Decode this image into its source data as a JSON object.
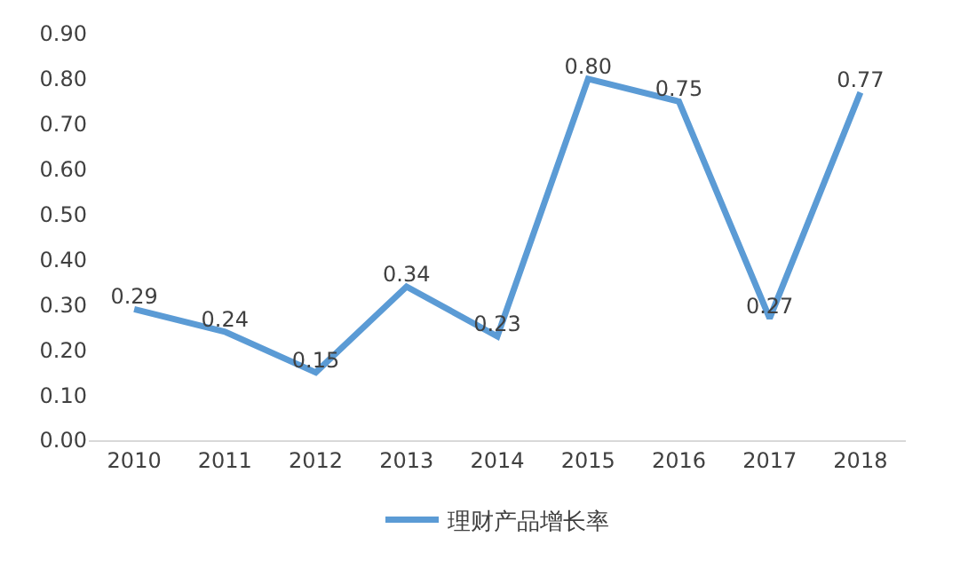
{
  "chart_data": {
    "type": "line",
    "categories": [
      "2010",
      "2011",
      "2012",
      "2013",
      "2014",
      "2015",
      "2016",
      "2017",
      "2018"
    ],
    "series": [
      {
        "name": "理财产品增长率",
        "color": "#5b9bd5",
        "values": [
          0.29,
          0.24,
          0.15,
          0.34,
          0.23,
          0.8,
          0.75,
          0.27,
          0.77
        ],
        "value_labels": [
          "0.29",
          "0.24",
          "0.15",
          "0.34",
          "0.23",
          "0.80",
          "0.75",
          "0.27",
          "0.77"
        ]
      }
    ],
    "ylim": [
      0,
      0.9
    ],
    "yticks": [
      {
        "value": 0,
        "label": "0.00"
      },
      {
        "value": 0.1,
        "label": "0.10"
      },
      {
        "value": 0.2,
        "label": "0.20"
      },
      {
        "value": 0.3,
        "label": "0.30"
      },
      {
        "value": 0.4,
        "label": "0.40"
      },
      {
        "value": 0.5,
        "label": "0.50"
      },
      {
        "value": 0.6,
        "label": "0.60"
      },
      {
        "value": 0.7,
        "label": "0.70"
      },
      {
        "value": 0.8,
        "label": "0.80"
      },
      {
        "value": 0.9,
        "label": "0.90"
      }
    ],
    "legend": "bottom",
    "marker": "none",
    "line_style": "solid"
  }
}
